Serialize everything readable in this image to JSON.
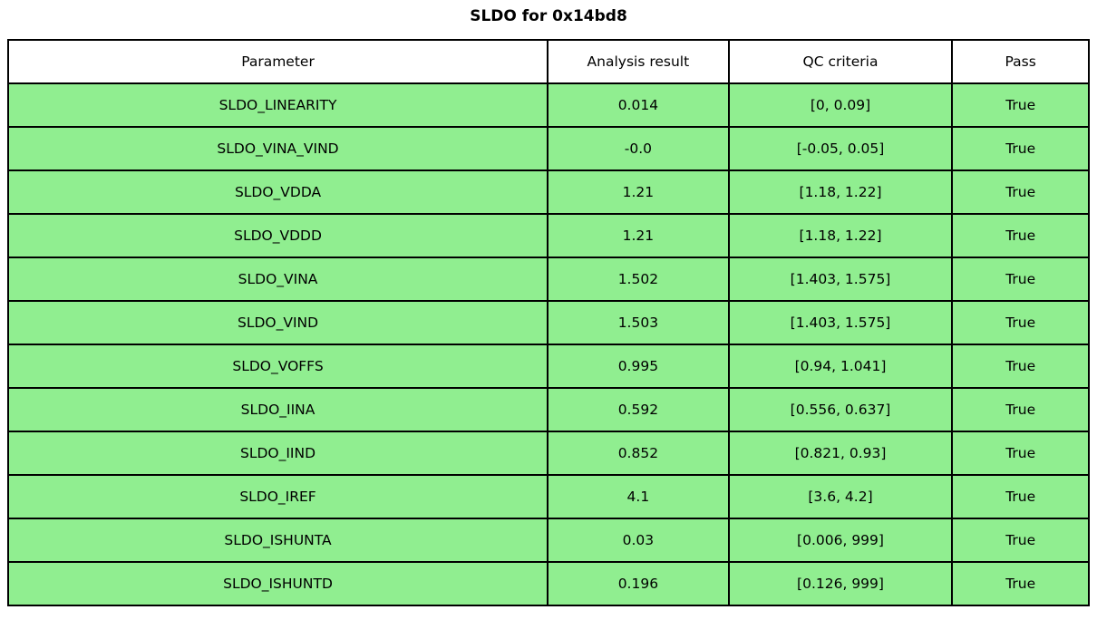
{
  "title": "SLDO for 0x14bd8",
  "colors": {
    "row_background": "#90ee90",
    "header_background": "#ffffff",
    "border": "#000000",
    "text": "#000000"
  },
  "table": {
    "headers": {
      "parameter": "Parameter",
      "result": "Analysis result",
      "criteria": "QC criteria",
      "pass": "Pass"
    },
    "rows": [
      {
        "parameter": "SLDO_LINEARITY",
        "result": "0.014",
        "criteria": "[0, 0.09]",
        "pass": "True"
      },
      {
        "parameter": "SLDO_VINA_VIND",
        "result": "-0.0",
        "criteria": "[-0.05, 0.05]",
        "pass": "True"
      },
      {
        "parameter": "SLDO_VDDA",
        "result": "1.21",
        "criteria": "[1.18, 1.22]",
        "pass": "True"
      },
      {
        "parameter": "SLDO_VDDD",
        "result": "1.21",
        "criteria": "[1.18, 1.22]",
        "pass": "True"
      },
      {
        "parameter": "SLDO_VINA",
        "result": "1.502",
        "criteria": "[1.403, 1.575]",
        "pass": "True"
      },
      {
        "parameter": "SLDO_VIND",
        "result": "1.503",
        "criteria": "[1.403, 1.575]",
        "pass": "True"
      },
      {
        "parameter": "SLDO_VOFFS",
        "result": "0.995",
        "criteria": "[0.94, 1.041]",
        "pass": "True"
      },
      {
        "parameter": "SLDO_IINA",
        "result": "0.592",
        "criteria": "[0.556, 0.637]",
        "pass": "True"
      },
      {
        "parameter": "SLDO_IIND",
        "result": "0.852",
        "criteria": "[0.821, 0.93]",
        "pass": "True"
      },
      {
        "parameter": "SLDO_IREF",
        "result": "4.1",
        "criteria": "[3.6, 4.2]",
        "pass": "True"
      },
      {
        "parameter": "SLDO_ISHUNTA",
        "result": "0.03",
        "criteria": "[0.006, 999]",
        "pass": "True"
      },
      {
        "parameter": "SLDO_ISHUNTD",
        "result": "0.196",
        "criteria": "[0.126, 999]",
        "pass": "True"
      }
    ]
  }
}
